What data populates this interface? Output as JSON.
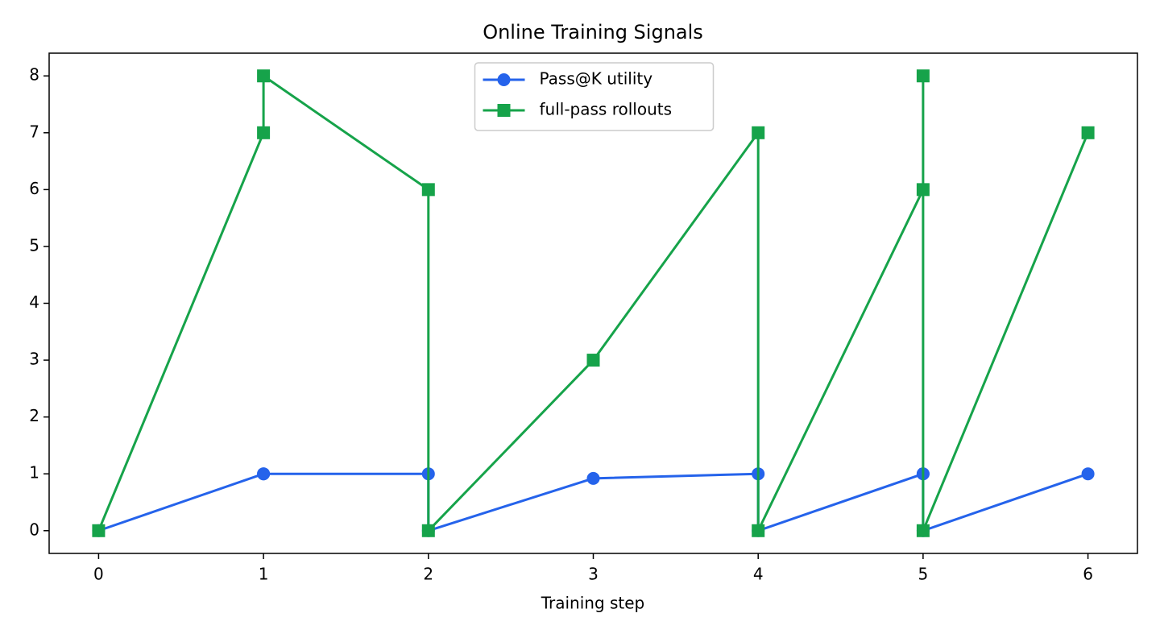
{
  "chart_data": {
    "type": "line",
    "title": "Online Training Signals",
    "xlabel": "Training step",
    "x": [
      0,
      1,
      1,
      2,
      2,
      3,
      4,
      4,
      5,
      5,
      5,
      6
    ],
    "series": [
      {
        "name": "Pass@K utility",
        "color": "#2563eb",
        "marker": "circle",
        "values": [
          0,
          1,
          1,
          1,
          0,
          0.92,
          1,
          0,
          1,
          1,
          0,
          1
        ]
      },
      {
        "name": "full-pass rollouts",
        "color": "#16a34a",
        "marker": "square",
        "values": [
          0,
          7,
          8,
          6,
          0,
          3,
          7,
          0,
          6,
          8,
          0,
          7
        ]
      }
    ],
    "xlim": [
      -0.3,
      6.3
    ],
    "ylim": [
      -0.4,
      8.4
    ],
    "xticks": [
      0,
      1,
      2,
      3,
      4,
      5,
      6
    ],
    "yticks": [
      0,
      1,
      2,
      3,
      4,
      5,
      6,
      7,
      8
    ],
    "grid": false,
    "legend": "upper center"
  }
}
